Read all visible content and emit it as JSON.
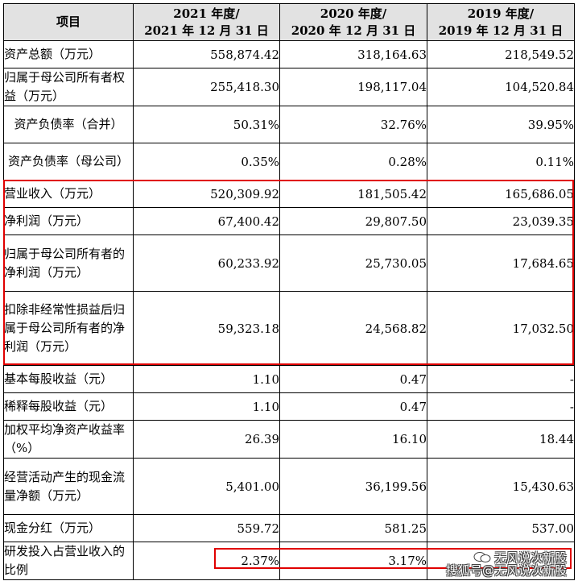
{
  "header": {
    "label": "项目",
    "columns": [
      {
        "year": "2021 年度/",
        "date": "2021 年 12 月 31 日"
      },
      {
        "year": "2020 年度/",
        "date": "2020 年 12 月 31 日"
      },
      {
        "year": "2019 年度/",
        "date": "2019 年 12 月 31 日"
      }
    ]
  },
  "rows": [
    {
      "label": "资产总额（万元）",
      "values": [
        "558,874.42",
        "318,164.63",
        "218,549.52"
      ]
    },
    {
      "label": "归属于母公司所有者权益（万元）",
      "values": [
        "255,418.30",
        "198,117.04",
        "104,520.84"
      ]
    },
    {
      "label": "资产负债率（合并）",
      "values": [
        "50.31%",
        "32.76%",
        "39.95%"
      ]
    },
    {
      "label": "资产负债率（母公司）",
      "values": [
        "0.35%",
        "0.28%",
        "0.11%"
      ]
    },
    {
      "label": "营业收入（万元）",
      "values": [
        "520,309.92",
        "181,505.42",
        "165,686.05"
      ]
    },
    {
      "label": "净利润（万元）",
      "values": [
        "67,400.42",
        "29,807.50",
        "23,039.35"
      ]
    },
    {
      "label": "归属于母公司所有者的净利润（万元）",
      "values": [
        "60,233.92",
        "25,730.05",
        "17,684.65"
      ]
    },
    {
      "label": "扣除非经常性损益后归属于母公司所有者的净利润（万元）",
      "values": [
        "59,323.18",
        "24,568.82",
        "17,032.50"
      ]
    },
    {
      "label": "基本每股收益（元）",
      "values": [
        "1.10",
        "0.47",
        "-"
      ]
    },
    {
      "label": "稀释每股收益（元）",
      "values": [
        "1.10",
        "0.47",
        "-"
      ]
    },
    {
      "label": "加权平均净资产收益率（%）",
      "values": [
        "26.39",
        "16.10",
        "18.44"
      ]
    },
    {
      "label": "经营活动产生的现金流量净额（万元）",
      "values": [
        "5,401.00",
        "36,199.56",
        "15,430.63"
      ]
    },
    {
      "label": "现金分红（万元）",
      "values": [
        "559.72",
        "581.25",
        "537.00"
      ]
    },
    {
      "label": "研发投入占营业收入的比例",
      "values": [
        "2.37%",
        "3.17%",
        ""
      ]
    }
  ],
  "watermark": {
    "line1": "无风说次新股",
    "line2": "搜狐号@无风说次新股"
  },
  "colors": {
    "highlight": "#e00000",
    "header_bg": "#e2e2e2"
  }
}
